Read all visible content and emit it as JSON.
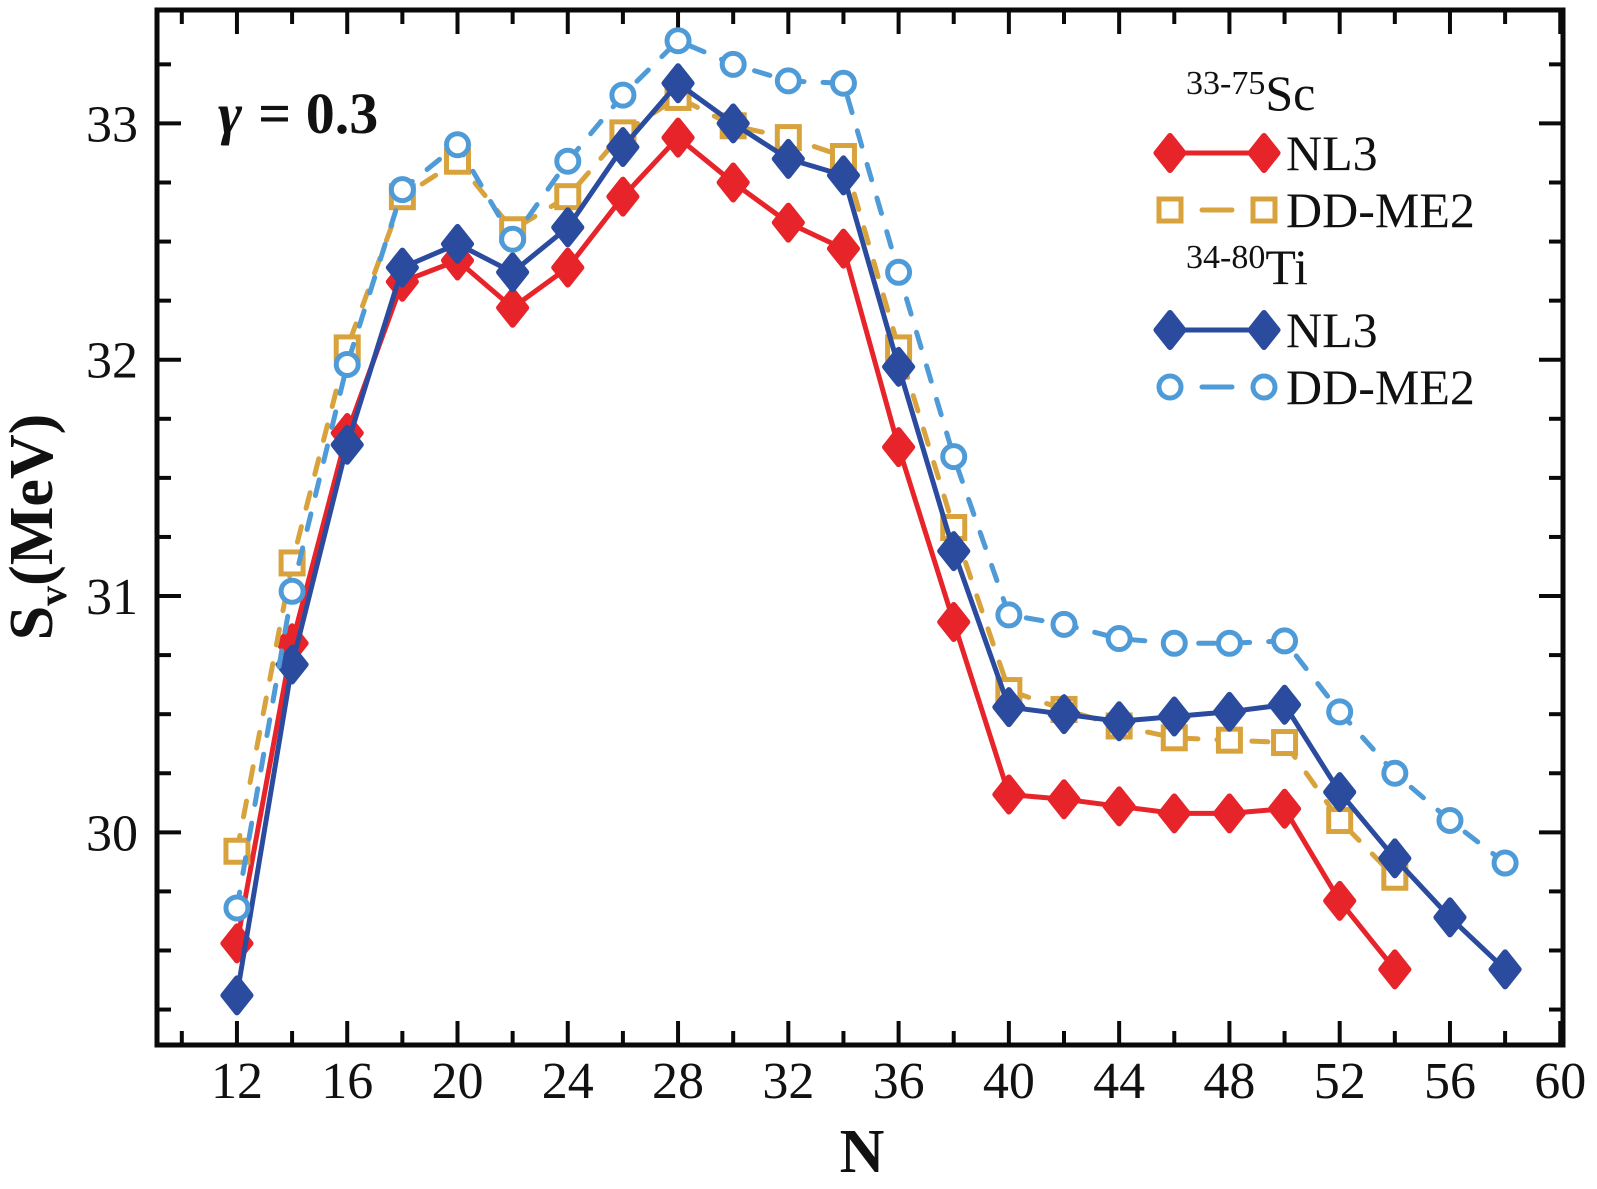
{
  "figure": {
    "annotation": {
      "gamma": "γ",
      "rest": "= 0.3"
    },
    "x_axis": {
      "title": "N",
      "major_ticks": [
        12,
        16,
        20,
        24,
        28,
        32,
        36,
        40,
        44,
        48,
        52,
        56,
        60
      ],
      "minor_ticks": [
        10,
        14,
        18,
        22,
        26,
        30,
        34,
        38,
        42,
        46,
        50,
        54,
        58
      ]
    },
    "y_axis": {
      "title_main": "S",
      "title_sub": "v",
      "title_rest": "(MeV)",
      "major_ticks": [
        30,
        31,
        32,
        33
      ],
      "minor_ticks": [
        29.25,
        29.5,
        29.75,
        30.25,
        30.5,
        30.75,
        31.25,
        31.5,
        31.75,
        32.25,
        32.5,
        32.75,
        33.25
      ]
    },
    "legend": {
      "entries": [
        {
          "type": "title",
          "sup": "33-75",
          "text": "Sc"
        },
        {
          "type": "item",
          "series": "sc-nl3",
          "label": "NL3"
        },
        {
          "type": "item",
          "series": "sc-ddme2",
          "label": "DD-ME2"
        },
        {
          "type": "title",
          "sup": "34-80",
          "text": "Ti"
        },
        {
          "type": "item",
          "series": "ti-nl3",
          "label": "NL3"
        },
        {
          "type": "item",
          "series": "ti-ddme2",
          "label": "DD-ME2"
        }
      ]
    },
    "frame_color": "#0a0a0a"
  },
  "chart_data": {
    "type": "line",
    "title": "",
    "xlabel": "N",
    "ylabel": "Sv(MeV)",
    "xlim": [
      9.1,
      60.1
    ],
    "ylim": [
      29.1,
      33.48
    ],
    "grid": false,
    "legend_position": "upper right",
    "series": [
      {
        "id": "sc-nl3",
        "name": "33-75Sc NL3",
        "color": "#E8242B",
        "line": "solid",
        "marker": "diamond",
        "x": [
          12,
          14,
          16,
          18,
          20,
          22,
          24,
          26,
          28,
          30,
          32,
          34,
          36,
          38,
          40,
          42,
          44,
          46,
          48,
          50,
          52,
          54
        ],
        "y": [
          29.53,
          30.8,
          31.69,
          32.33,
          32.42,
          32.22,
          32.39,
          32.69,
          32.94,
          32.75,
          32.58,
          32.47,
          31.63,
          30.89,
          30.16,
          30.14,
          30.11,
          30.08,
          30.08,
          30.1,
          29.71,
          29.42
        ]
      },
      {
        "id": "sc-ddme2",
        "name": "33-75Sc DD-ME2",
        "color": "#D8A23D",
        "line": "dashed",
        "marker": "square-open",
        "x": [
          12,
          14,
          16,
          18,
          20,
          22,
          24,
          26,
          28,
          30,
          32,
          34,
          36,
          38,
          40,
          42,
          44,
          46,
          48,
          50,
          52,
          54
        ],
        "y": [
          29.92,
          31.14,
          32.05,
          32.69,
          32.84,
          32.55,
          32.69,
          32.96,
          33.11,
          32.99,
          32.94,
          32.86,
          32.05,
          31.29,
          30.6,
          30.52,
          30.45,
          30.4,
          30.39,
          30.38,
          30.05,
          29.81
        ]
      },
      {
        "id": "ti-nl3",
        "name": "34-80Ti NL3",
        "color": "#2B4B9F",
        "line": "solid",
        "marker": "diamond",
        "x": [
          12,
          14,
          16,
          18,
          20,
          22,
          24,
          26,
          28,
          30,
          32,
          34,
          36,
          38,
          40,
          42,
          44,
          46,
          48,
          50,
          52,
          54,
          56,
          58
        ],
        "y": [
          29.31,
          30.71,
          31.64,
          32.39,
          32.49,
          32.37,
          32.56,
          32.9,
          33.17,
          33.0,
          32.85,
          32.78,
          31.97,
          31.19,
          30.53,
          30.5,
          30.47,
          30.49,
          30.51,
          30.54,
          30.17,
          29.89,
          29.64,
          29.42
        ]
      },
      {
        "id": "ti-ddme2",
        "name": "34-80Ti DD-ME2",
        "color": "#4F9BD8",
        "line": "dashed",
        "marker": "circle-open",
        "x": [
          12,
          14,
          16,
          18,
          20,
          22,
          24,
          26,
          28,
          30,
          32,
          34,
          36,
          38,
          40,
          42,
          44,
          46,
          48,
          50,
          52,
          54,
          56,
          58
        ],
        "y": [
          29.68,
          31.02,
          31.98,
          32.72,
          32.91,
          32.51,
          32.84,
          33.12,
          33.35,
          33.25,
          33.18,
          33.17,
          32.37,
          31.59,
          30.92,
          30.88,
          30.82,
          30.8,
          30.8,
          30.81,
          30.51,
          30.25,
          30.05,
          29.87
        ]
      }
    ]
  }
}
